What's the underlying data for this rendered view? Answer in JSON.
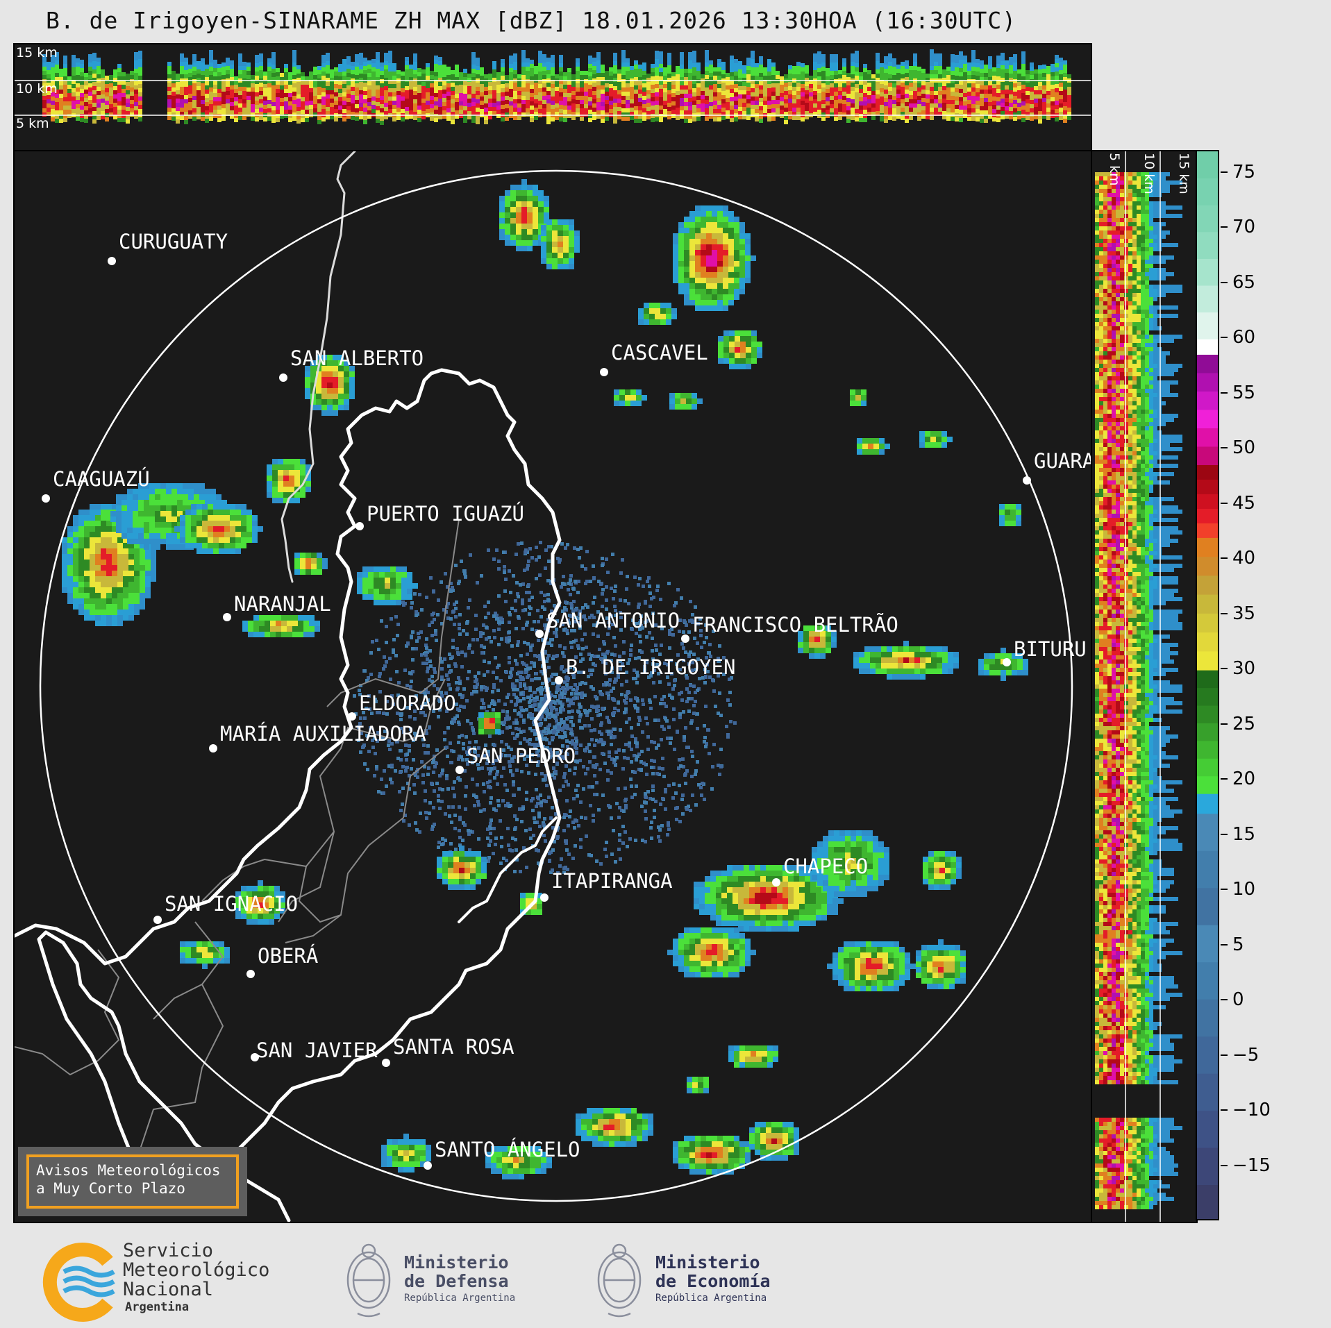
{
  "title": "B. de Irigoyen-SINARAME ZH MAX [dBZ] 18.01.2026 13:30HOA (16:30UTC)",
  "top_panel": {
    "height_labels": [
      "15 km",
      "10 km",
      "5 km"
    ]
  },
  "side_panel": {
    "height_labels": [
      "5 km",
      "10 km",
      "15 km"
    ]
  },
  "colorbar": {
    "unit": "dBZ",
    "ticks": [
      "75",
      "70",
      "65",
      "60",
      "55",
      "50",
      "45",
      "40",
      "35",
      "30",
      "25",
      "20",
      "15",
      "10",
      "5",
      "0",
      "−5",
      "−10",
      "−15"
    ],
    "colors": {
      "neg": [
        "#3b3e68",
        "#3d4778",
        "#3e5286",
        "#3f5d90",
        "#40689a",
        "#4173a2",
        "#427eac",
        "#4a89b6"
      ],
      "blue": [
        "#2f8fca",
        "#2a9ed4",
        "#2aa8dc"
      ],
      "green": [
        "#4be03a",
        "#45cc35",
        "#3fb630",
        "#37a02b",
        "#2e8a24",
        "#267a1f",
        "#1f6b1a"
      ],
      "yellow": [
        "#ece63a",
        "#e2d83a",
        "#d4c93a",
        "#c8b83a",
        "#c4a238",
        "#d08c2c",
        "#e08020"
      ],
      "red": [
        "#f2402a",
        "#e41c28",
        "#cf1020",
        "#b40a18",
        "#9c0612"
      ],
      "magenta": [
        "#c8087a",
        "#e010a8",
        "#f020d8",
        "#d018c8",
        "#b010b0",
        "#900c96"
      ],
      "white": "#ffffff",
      "mint": [
        "#e0f4ec",
        "#c2ecdc",
        "#a6e4cc",
        "#90dcbf",
        "#82d6b6",
        "#78d2b0",
        "#70cea9"
      ]
    }
  },
  "map": {
    "cities": [
      {
        "name": "CURUGUATY"
      },
      {
        "name": "SAN ALBERTO"
      },
      {
        "name": "CASCAVEL"
      },
      {
        "name": "CAAGUAZÚ"
      },
      {
        "name": "GUARA"
      },
      {
        "name": "PUERTO IGUAZÚ"
      },
      {
        "name": "NARANJAL"
      },
      {
        "name": "SAN ANTONIO"
      },
      {
        "name": "FRANCISCO BELTRÃO"
      },
      {
        "name": "B. DE IRIGOYEN"
      },
      {
        "name": "BITURU"
      },
      {
        "name": "ELDORADO"
      },
      {
        "name": "MARÍA AUXILIADORA"
      },
      {
        "name": "SAN PEDRO"
      },
      {
        "name": "CHAPECO"
      },
      {
        "name": "ITAPIRANGA"
      },
      {
        "name": "SAN IGNACIO"
      },
      {
        "name": "OBERÁ"
      },
      {
        "name": "SAN JAVIER"
      },
      {
        "name": "SANTA ROSA"
      },
      {
        "name": "SANTO ÁNGELO"
      }
    ]
  },
  "notice": {
    "line1": "Avisos Meteorológicos",
    "line2": "a Muy Corto Plazo",
    "border_color": "#f0a020"
  },
  "footer": {
    "smn": {
      "line1": "Servicio",
      "line2": "Meteorológico",
      "line3": "Nacional",
      "line4": "Argentina",
      "icon": "smn-logo-icon"
    },
    "defensa": {
      "line1": "Ministerio",
      "line2": "de Defensa",
      "line3": "República Argentina",
      "icon": "coat-of-arms-icon"
    },
    "economia": {
      "line1": "Ministerio",
      "line2": "de Economía",
      "line3": "República Argentina",
      "icon": "coat-of-arms-icon"
    }
  }
}
